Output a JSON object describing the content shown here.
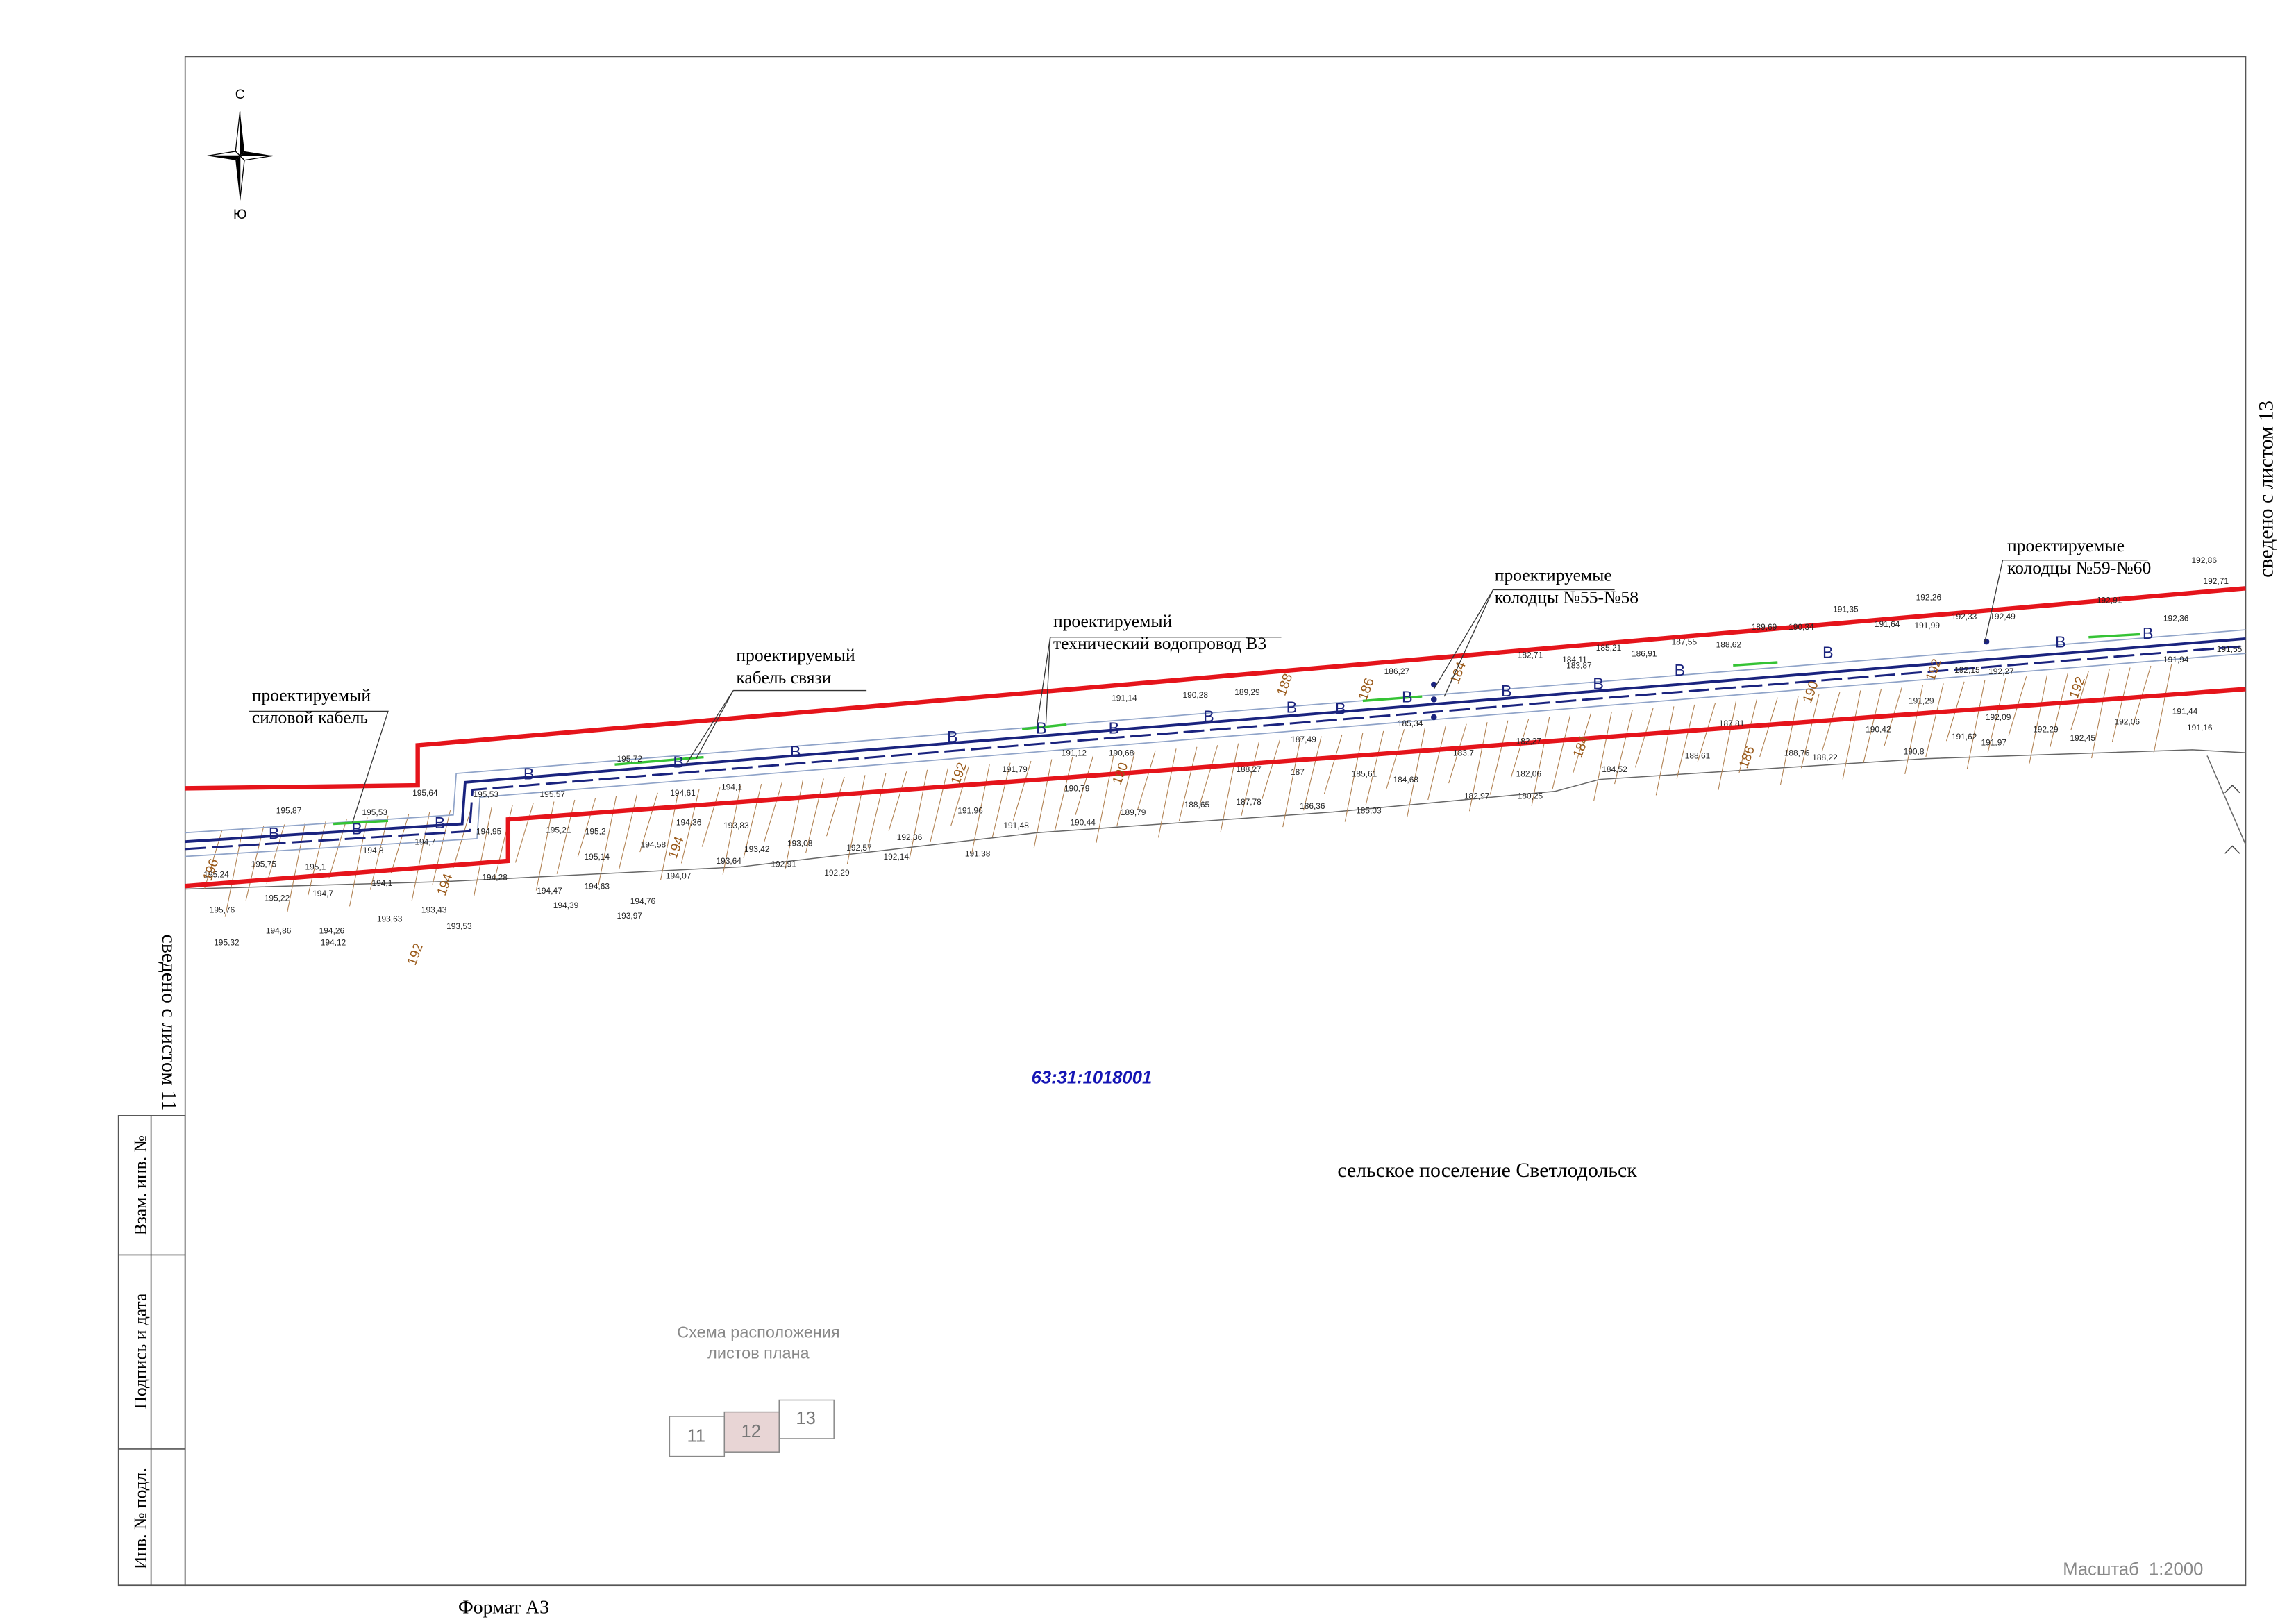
{
  "north": {
    "north": "С",
    "south": "Ю"
  },
  "labels": [
    {
      "lines": [
        "проектируемый",
        "силовой кабель"
      ]
    },
    {
      "lines": [
        "проектируемый",
        "кабель связи"
      ]
    },
    {
      "lines": [
        "проектируемый",
        "технический водопровод В3"
      ]
    },
    {
      "lines": [
        "проектируемые",
        "колодцы №55-№58"
      ]
    },
    {
      "lines": [
        "проектируемые",
        "колодцы №59-№60"
      ]
    }
  ],
  "cadastral_number": "63:31:1018001",
  "settlement": "сельское поселение Светлодольск",
  "match_lines": {
    "left": "сведено с листом 11",
    "right": "сведено с листом 13"
  },
  "stamp": [
    "Взам. инв. №",
    "Подпись и дата",
    "Инв. № подл."
  ],
  "sheet_scheme": {
    "title": [
      "Схема расположения",
      "листов плана"
    ],
    "sheets": [
      "11",
      "12",
      "13"
    ]
  },
  "scale": "Масштаб  1:2000",
  "format": "Формат А3",
  "pipe_marker": "В",
  "spot_heights": [
    "195,87",
    "195,64",
    "195,53",
    "195,72",
    "195,57",
    "195,53",
    "195,21",
    "195,2",
    "195,14",
    "195,75",
    "195,1",
    "194,8",
    "194,7",
    "194,95",
    "194,61",
    "194,36",
    "194,58",
    "194,1",
    "193,83",
    "193,42",
    "193,64",
    "193,08",
    "192,91",
    "192,29",
    "192,57",
    "192,36",
    "192,14",
    "191,38",
    "191,96",
    "191,48",
    "191,79",
    "191,12",
    "190,79",
    "190,44",
    "189,79",
    "190,68",
    "191,14",
    "190,28",
    "189,29",
    "188,65",
    "187,78",
    "188,27",
    "187,49",
    "187",
    "186,36",
    "186,27",
    "185,34",
    "185,61",
    "184,68",
    "185,03",
    "183,7",
    "182,27",
    "182,06",
    "182,97",
    "180,25",
    "182,71",
    "184,11",
    "185,21",
    "186,91",
    "187,55",
    "188,62",
    "189,69",
    "190,34",
    "191,35",
    "191,64",
    "191,99",
    "192,26",
    "192,33",
    "192,49",
    "192,91",
    "192,71",
    "192,86",
    "192,36",
    "191,55",
    "191,94",
    "191,44",
    "191,16",
    "192,06",
    "192,45",
    "192,29",
    "191,97",
    "191,62",
    "190,8",
    "190,42",
    "188,22",
    "188,76",
    "187,81",
    "188,61",
    "184,52",
    "183,87",
    "192,09",
    "192,27",
    "192,15",
    "191,29",
    "194,28",
    "194,47",
    "194,63",
    "194,07",
    "194,76",
    "193,97",
    "194,39",
    "194,1",
    "193,43",
    "193,53",
    "193,63",
    "195,76",
    "195,32",
    "194,86",
    "194,26",
    "194,12",
    "195,22",
    "194,7",
    "195,24"
  ],
  "contour_labels": [
    "196",
    "194",
    "192",
    "194",
    "192",
    "190",
    "188",
    "186",
    "184",
    "184",
    "186",
    "190",
    "192",
    "192"
  ]
}
